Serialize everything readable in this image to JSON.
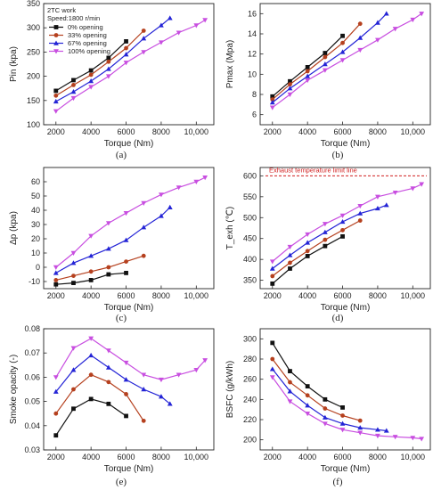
{
  "figure": {
    "panel_labels": [
      "(a)",
      "(b)",
      "(c)",
      "(d)",
      "(e)",
      "(f)"
    ]
  },
  "legend": {
    "header": [
      "2TC work",
      "Speed:1800 r/min"
    ],
    "entries": [
      "0% opening",
      "33% opening",
      "67% opening",
      "100% opening"
    ],
    "colors": [
      "#111111",
      "#b5401e",
      "#2424d6",
      "#c84ee0"
    ],
    "markers": [
      "square",
      "circle",
      "triangle-up",
      "triangle-down"
    ]
  },
  "chart_data": [
    {
      "type": "line",
      "panel": "(a)",
      "xlabel": "Torque (Nm)",
      "ylabel": "Pin (kpa)",
      "xlim": [
        1300,
        11000
      ],
      "ylim": [
        100,
        350
      ],
      "xticks": [
        2000,
        4000,
        6000,
        8000,
        10000
      ],
      "xtick_labels": [
        "2000",
        "4000",
        "6000",
        "8000",
        "10,000"
      ],
      "yticks": [
        100,
        150,
        200,
        250,
        300,
        350
      ],
      "ytick_labels": [
        "100",
        "150",
        "200",
        "250",
        "300",
        "350"
      ],
      "series": [
        {
          "name": "0% opening",
          "x": [
            2000,
            3000,
            4000,
            5000,
            6000
          ],
          "y": [
            170,
            192,
            212,
            238,
            272
          ]
        },
        {
          "name": "33% opening",
          "x": [
            2000,
            3000,
            4000,
            5000,
            6000,
            7000
          ],
          "y": [
            160,
            182,
            203,
            230,
            258,
            294
          ]
        },
        {
          "name": "67% opening",
          "x": [
            2000,
            3000,
            4000,
            5000,
            6000,
            7000,
            8000,
            8500
          ],
          "y": [
            148,
            168,
            190,
            215,
            245,
            278,
            305,
            320
          ]
        },
        {
          "name": "100% opening",
          "x": [
            2000,
            3000,
            4000,
            5000,
            6000,
            7000,
            8000,
            9000,
            10000,
            10500
          ],
          "y": [
            128,
            155,
            178,
            200,
            228,
            250,
            270,
            290,
            305,
            316
          ]
        }
      ]
    },
    {
      "type": "line",
      "panel": "(b)",
      "xlabel": "Torque (Nm)",
      "ylabel": "Pmax (Mpa)",
      "xlim": [
        1300,
        11000
      ],
      "ylim": [
        5,
        17
      ],
      "xticks": [
        2000,
        4000,
        6000,
        8000,
        10000
      ],
      "xtick_labels": [
        "2000",
        "4000",
        "6000",
        "8000",
        "10,000"
      ],
      "yticks": [
        6,
        8,
        10,
        12,
        14,
        16
      ],
      "ytick_labels": [
        "6",
        "8",
        "10",
        "12",
        "14",
        "16"
      ],
      "series": [
        {
          "name": "0% opening",
          "x": [
            2000,
            3000,
            4000,
            5000,
            6000
          ],
          "y": [
            7.8,
            9.3,
            10.7,
            12.1,
            13.8
          ]
        },
        {
          "name": "33% opening",
          "x": [
            2000,
            3000,
            4000,
            5000,
            6000,
            7000
          ],
          "y": [
            7.5,
            9.0,
            10.3,
            11.7,
            13.1,
            15.0
          ]
        },
        {
          "name": "67% opening",
          "x": [
            2000,
            3000,
            4000,
            5000,
            6000,
            7000,
            8000,
            8500
          ],
          "y": [
            7.2,
            8.6,
            9.8,
            11.0,
            12.2,
            13.6,
            15.1,
            16.0
          ]
        },
        {
          "name": "100% opening",
          "x": [
            2000,
            3000,
            4000,
            5000,
            6000,
            7000,
            8000,
            9000,
            10000,
            10500
          ],
          "y": [
            6.7,
            8.0,
            9.4,
            10.4,
            11.4,
            12.4,
            13.4,
            14.5,
            15.4,
            16.0
          ]
        }
      ]
    },
    {
      "type": "line",
      "panel": "(c)",
      "xlabel": "Torque (Nm)",
      "ylabel": "Δp (kpa)",
      "xlim": [
        1300,
        11000
      ],
      "ylim": [
        -15,
        70
      ],
      "xticks": [
        2000,
        4000,
        6000,
        8000,
        10000
      ],
      "xtick_labels": [
        "2000",
        "4000",
        "6000",
        "8000",
        "10,000"
      ],
      "yticks": [
        -10,
        0,
        10,
        20,
        30,
        40,
        50,
        60
      ],
      "ytick_labels": [
        "-10",
        "0",
        "10",
        "20",
        "30",
        "40",
        "50",
        "60"
      ],
      "series": [
        {
          "name": "0% opening",
          "x": [
            2000,
            3000,
            4000,
            5000,
            6000
          ],
          "y": [
            -12,
            -11,
            -9,
            -5,
            -4
          ]
        },
        {
          "name": "33% opening",
          "x": [
            2000,
            3000,
            4000,
            5000,
            6000,
            7000
          ],
          "y": [
            -9,
            -6,
            -3,
            0,
            4,
            8
          ]
        },
        {
          "name": "67% opening",
          "x": [
            2000,
            3000,
            4000,
            5000,
            6000,
            7000,
            8000,
            8500
          ],
          "y": [
            -4,
            3,
            8,
            13,
            19,
            28,
            36,
            42
          ]
        },
        {
          "name": "100% opening",
          "x": [
            2000,
            3000,
            4000,
            5000,
            6000,
            7000,
            8000,
            9000,
            10000,
            10500
          ],
          "y": [
            0,
            10,
            22,
            31,
            38,
            45,
            51,
            56,
            60,
            63
          ]
        }
      ]
    },
    {
      "type": "line",
      "panel": "(d)",
      "xlabel": "Torque (Nm)",
      "ylabel": "T_exh (℃)",
      "xlim": [
        1300,
        11000
      ],
      "ylim": [
        330,
        620
      ],
      "xticks": [
        2000,
        4000,
        6000,
        8000,
        10000
      ],
      "xtick_labels": [
        "2000",
        "4000",
        "6000",
        "8000",
        "10,000"
      ],
      "yticks": [
        350,
        400,
        450,
        500,
        550,
        600
      ],
      "ytick_labels": [
        "350",
        "400",
        "450",
        "500",
        "550",
        "600"
      ],
      "reference_line": {
        "y": 600,
        "label": "Exhaust temperature limit line",
        "color": "#d11f1f",
        "style": "dashed"
      },
      "series": [
        {
          "name": "0% opening",
          "x": [
            2000,
            3000,
            4000,
            5000,
            6000
          ],
          "y": [
            342,
            378,
            408,
            432,
            455
          ]
        },
        {
          "name": "33% opening",
          "x": [
            2000,
            3000,
            4000,
            5000,
            6000,
            7000
          ],
          "y": [
            360,
            392,
            420,
            447,
            470,
            493
          ]
        },
        {
          "name": "67% opening",
          "x": [
            2000,
            3000,
            4000,
            5000,
            6000,
            7000,
            8000,
            8500
          ],
          "y": [
            378,
            410,
            440,
            465,
            490,
            510,
            522,
            530
          ]
        },
        {
          "name": "100% opening",
          "x": [
            2000,
            3000,
            4000,
            5000,
            6000,
            7000,
            8000,
            9000,
            10000,
            10500
          ],
          "y": [
            395,
            430,
            460,
            485,
            505,
            528,
            550,
            560,
            570,
            580
          ]
        }
      ]
    },
    {
      "type": "line",
      "panel": "(e)",
      "xlabel": "Torque (Nm)",
      "ylabel": "Smoke opacity (-)",
      "xlim": [
        1300,
        11000
      ],
      "ylim": [
        0.03,
        0.08
      ],
      "xticks": [
        2000,
        4000,
        6000,
        8000,
        10000
      ],
      "xtick_labels": [
        "2000",
        "4000",
        "6000",
        "8000",
        "10,000"
      ],
      "yticks": [
        0.03,
        0.04,
        0.05,
        0.06,
        0.07,
        0.08
      ],
      "ytick_labels": [
        "0.03",
        "0.04",
        "0.05",
        "0.06",
        "0.07",
        "0.08"
      ],
      "series": [
        {
          "name": "0% opening",
          "x": [
            2000,
            3000,
            4000,
            5000,
            6000
          ],
          "y": [
            0.036,
            0.047,
            0.051,
            0.049,
            0.044
          ]
        },
        {
          "name": "33% opening",
          "x": [
            2000,
            3000,
            4000,
            5000,
            6000,
            7000
          ],
          "y": [
            0.045,
            0.055,
            0.061,
            0.058,
            0.053,
            0.042
          ]
        },
        {
          "name": "67% opening",
          "x": [
            2000,
            3000,
            4000,
            5000,
            6000,
            7000,
            8000,
            8500
          ],
          "y": [
            0.054,
            0.063,
            0.069,
            0.064,
            0.059,
            0.055,
            0.052,
            0.049
          ]
        },
        {
          "name": "100% opening",
          "x": [
            2000,
            3000,
            4000,
            5000,
            6000,
            7000,
            8000,
            9000,
            10000,
            10500
          ],
          "y": [
            0.06,
            0.072,
            0.076,
            0.071,
            0.066,
            0.061,
            0.059,
            0.061,
            0.063,
            0.067
          ]
        }
      ]
    },
    {
      "type": "line",
      "panel": "(f)",
      "xlabel": "Torque (Nm)",
      "ylabel": "BSFC (g/kWh)",
      "xlim": [
        1300,
        11000
      ],
      "ylim": [
        190,
        310
      ],
      "xticks": [
        2000,
        4000,
        6000,
        8000,
        10000
      ],
      "xtick_labels": [
        "2000",
        "4000",
        "6000",
        "8000",
        "10,000"
      ],
      "yticks": [
        200,
        220,
        240,
        260,
        280,
        300
      ],
      "ytick_labels": [
        "200",
        "220",
        "240",
        "260",
        "280",
        "300"
      ],
      "series": [
        {
          "name": "0% opening",
          "x": [
            2000,
            3000,
            4000,
            5000,
            6000
          ],
          "y": [
            296,
            268,
            253,
            240,
            232
          ]
        },
        {
          "name": "33% opening",
          "x": [
            2000,
            3000,
            4000,
            5000,
            6000,
            7000
          ],
          "y": [
            280,
            257,
            244,
            231,
            224,
            219
          ]
        },
        {
          "name": "67% opening",
          "x": [
            2000,
            3000,
            4000,
            5000,
            6000,
            7000,
            8000,
            8500
          ],
          "y": [
            270,
            248,
            234,
            222,
            216,
            212,
            210,
            209
          ]
        },
        {
          "name": "100% opening",
          "x": [
            2000,
            3000,
            4000,
            5000,
            6000,
            7000,
            8000,
            9000,
            10000,
            10500
          ],
          "y": [
            262,
            238,
            226,
            216,
            210,
            207,
            204,
            203,
            202,
            201
          ]
        }
      ]
    }
  ]
}
